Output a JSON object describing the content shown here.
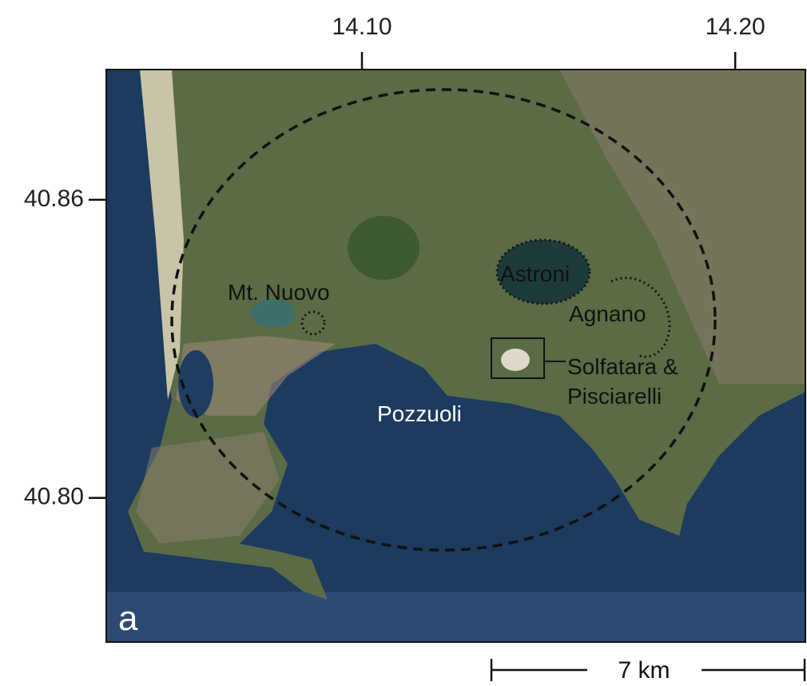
{
  "map": {
    "xlim": [
      14.0315,
      14.2188
    ],
    "ylim": [
      40.771,
      40.8862
    ],
    "xticks": [
      {
        "value": 14.1,
        "label": "14.10"
      },
      {
        "value": 14.2,
        "label": "14.20"
      }
    ],
    "yticks": [
      {
        "value": 40.86,
        "label": "40.86"
      },
      {
        "value": 40.8,
        "label": "40.80"
      }
    ],
    "labels": [
      "Mt. Nuovo",
      "Astroni",
      "Agnano",
      "Solfatara &",
      "Pisciarelli",
      "Pozzuoli"
    ],
    "panel": "a",
    "scale_bar": "7 km"
  }
}
